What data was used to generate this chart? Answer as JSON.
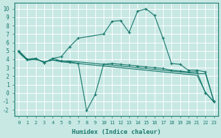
{
  "xlabel": "Humidex (Indice chaleur)",
  "xlim": [
    -0.5,
    23.5
  ],
  "ylim": [
    -2.7,
    10.7
  ],
  "xticks": [
    0,
    1,
    2,
    3,
    4,
    5,
    6,
    7,
    8,
    9,
    10,
    11,
    12,
    13,
    14,
    15,
    16,
    17,
    18,
    19,
    20,
    21,
    22,
    23
  ],
  "yticks": [
    -2,
    -1,
    0,
    1,
    2,
    3,
    4,
    5,
    6,
    7,
    8,
    9,
    10
  ],
  "bg_color": "#c8e8e4",
  "grid_color": "#ffffff",
  "line_color": "#1a7a6e",
  "lines": [
    {
      "x": [
        0,
        1,
        2,
        3,
        4,
        5,
        6,
        7,
        10,
        11,
        12,
        13,
        14,
        15,
        16,
        17,
        18,
        19,
        20,
        21,
        22,
        23
      ],
      "y": [
        5.0,
        4.0,
        4.1,
        3.6,
        4.1,
        4.3,
        5.5,
        6.5,
        7.0,
        8.5,
        8.6,
        7.2,
        9.7,
        10.0,
        9.2,
        6.5,
        3.5,
        3.4,
        2.7,
        2.7,
        2.5,
        -1.0
      ],
      "marker": "+"
    },
    {
      "x": [
        0,
        1,
        2,
        3,
        4,
        5,
        6,
        7,
        8,
        9,
        10,
        11,
        12,
        13,
        14,
        15,
        16,
        17,
        18,
        19,
        20,
        21,
        22,
        23
      ],
      "y": [
        5.0,
        4.0,
        4.1,
        3.6,
        4.1,
        3.8,
        3.7,
        3.5,
        -2.1,
        -0.2,
        3.4,
        3.5,
        3.4,
        3.3,
        3.2,
        3.1,
        3.0,
        2.9,
        2.7,
        2.6,
        2.5,
        2.5,
        0.0,
        -1.0
      ],
      "marker": "+"
    },
    {
      "x": [
        0,
        1,
        2,
        3,
        4,
        5,
        6,
        7,
        8,
        9,
        10,
        11,
        12,
        13,
        14,
        15,
        16,
        17,
        18,
        19,
        20,
        21,
        22,
        23
      ],
      "y": [
        4.8,
        3.9,
        4.0,
        3.7,
        3.9,
        3.8,
        3.8,
        3.7,
        3.6,
        3.5,
        3.4,
        3.3,
        3.2,
        3.1,
        3.0,
        2.9,
        2.8,
        2.7,
        2.6,
        2.5,
        2.4,
        2.3,
        2.3,
        -1.0
      ],
      "marker": null
    },
    {
      "x": [
        0,
        1,
        2,
        3,
        4,
        5,
        6,
        7,
        8,
        9,
        10,
        11,
        12,
        13,
        14,
        15,
        16,
        17,
        18,
        19,
        20,
        21,
        22,
        23
      ],
      "y": [
        4.8,
        3.9,
        4.0,
        3.7,
        3.9,
        3.7,
        3.6,
        3.5,
        3.4,
        3.3,
        3.2,
        3.1,
        3.0,
        2.9,
        2.8,
        2.7,
        2.6,
        2.5,
        2.4,
        2.3,
        2.2,
        2.1,
        0.1,
        -1.1
      ],
      "marker": null
    }
  ]
}
